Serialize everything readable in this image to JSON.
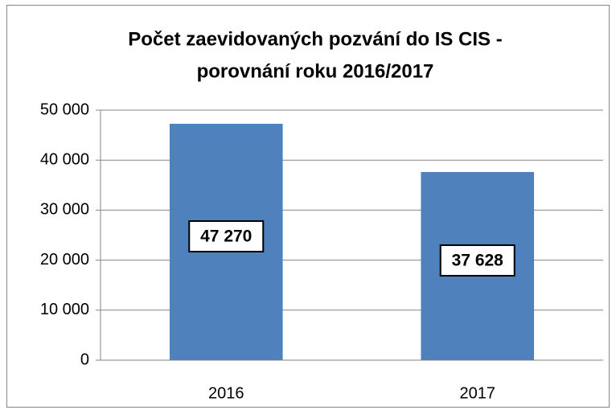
{
  "chart_data": {
    "type": "bar",
    "title": [
      "Počet zaevidovaných pozvání do IS CIS -",
      "porovnání roku 2016/2017"
    ],
    "categories": [
      "2016",
      "2017"
    ],
    "values": [
      47270,
      37628
    ],
    "value_labels": [
      "47 270",
      "37 628"
    ],
    "color": "#4f81bd",
    "ylim": [
      0,
      50000
    ],
    "yticks": [
      0,
      {
        "value": 10000,
        "label": "10 000"
      },
      {
        "value": 20000,
        "label": "20 000"
      },
      {
        "value": 30000,
        "label": "30 000"
      },
      {
        "value": 40000,
        "label": "40 000"
      },
      {
        "value": 50000,
        "label": "50 000"
      }
    ],
    "grid": true
  }
}
